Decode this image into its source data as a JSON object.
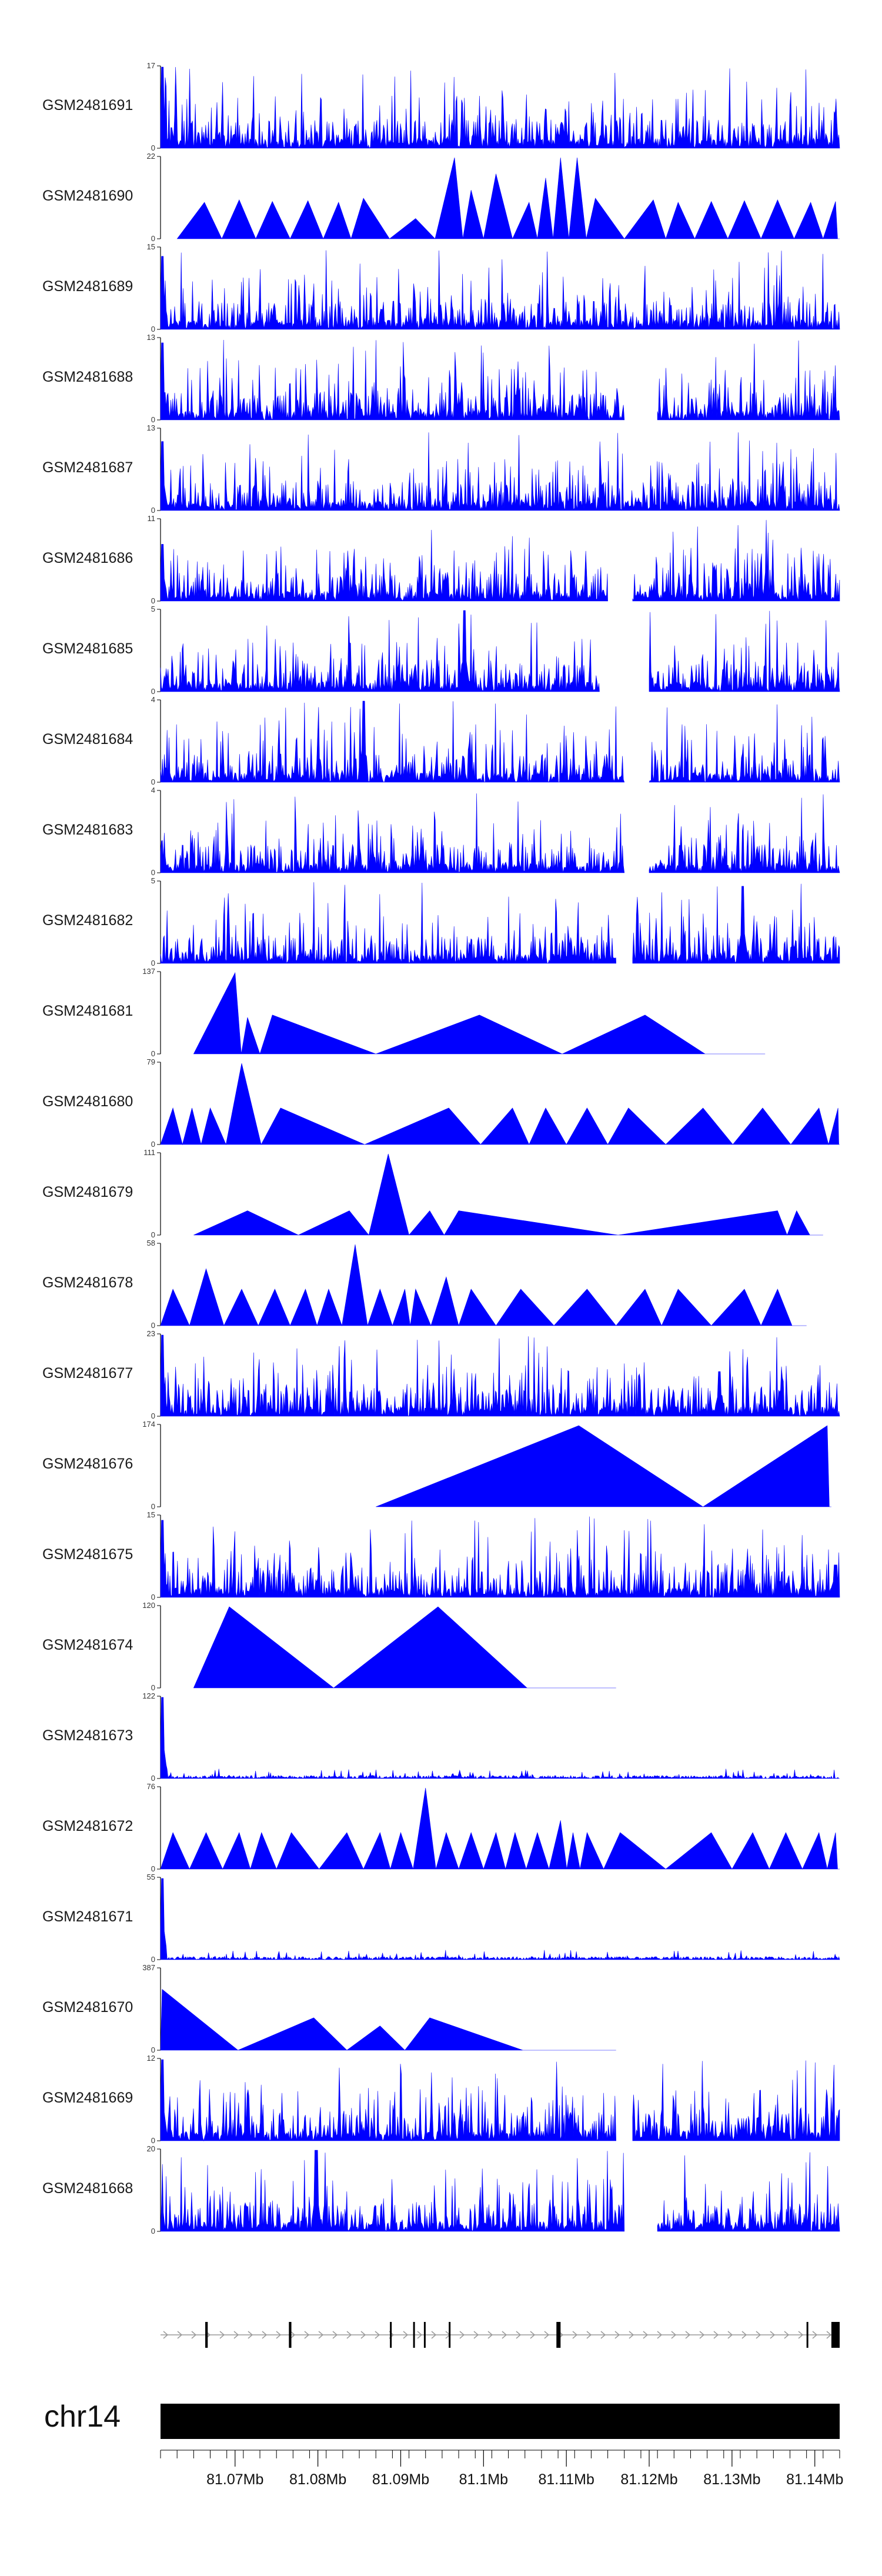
{
  "chart_data": {
    "type": "area",
    "title": "",
    "genome": {
      "chromosome": "chr14",
      "region_mb": [
        81.061,
        81.143
      ]
    },
    "colors": {
      "signal": "#0000ff",
      "axis": "#000000",
      "gene": "#000000",
      "intron": "#9a9a9a",
      "ideogram": "#000000"
    },
    "x_axis": {
      "ticks_mb": [
        81.07,
        81.08,
        81.09,
        81.1,
        81.11,
        81.12,
        81.13,
        81.14
      ],
      "tick_labels": [
        "81.07Mb",
        "81.08Mb",
        "81.09Mb",
        "81.1Mb",
        "81.11Mb",
        "81.12Mb",
        "81.13Mb",
        "81.14Mb"
      ],
      "minor_step_mb": 0.002
    },
    "tracks": [
      {
        "name": "GSM2481691",
        "ymax": 17,
        "ymin": 0,
        "style": "dense",
        "coverage": [
          [
            81.061,
            81.143
          ]
        ],
        "seed": 11,
        "spikes": [
          [
            81.0612,
            1.0
          ],
          [
            81.1095,
            0.28
          ]
        ]
      },
      {
        "name": "GSM2481690",
        "ymax": 22,
        "ymin": 0,
        "style": "peaks",
        "coverage": [
          [
            81.063,
            81.143
          ]
        ],
        "seed": 12,
        "peaks": [
          [
            81.0663,
            0.45
          ],
          [
            81.0705,
            0.48
          ],
          [
            81.0745,
            0.46
          ],
          [
            81.0788,
            0.47
          ],
          [
            81.0825,
            0.45
          ],
          [
            81.0855,
            0.5
          ],
          [
            81.0918,
            0.25
          ],
          [
            81.0965,
            1.0
          ],
          [
            81.0985,
            0.6
          ],
          [
            81.1015,
            0.8
          ],
          [
            81.1055,
            0.45
          ],
          [
            81.1075,
            0.75
          ],
          [
            81.1093,
            1.0
          ],
          [
            81.1113,
            1.0
          ],
          [
            81.1135,
            0.5
          ],
          [
            81.1205,
            0.48
          ],
          [
            81.1235,
            0.45
          ],
          [
            81.1275,
            0.46
          ],
          [
            81.1315,
            0.47
          ],
          [
            81.1355,
            0.48
          ],
          [
            81.1395,
            0.45
          ],
          [
            81.1425,
            0.46
          ]
        ]
      },
      {
        "name": "GSM2481689",
        "ymax": 15,
        "ymin": 0,
        "style": "dense",
        "coverage": [
          [
            81.061,
            81.143
          ]
        ],
        "seed": 13,
        "spikes": [
          [
            81.0612,
            0.9
          ]
        ]
      },
      {
        "name": "GSM2481688",
        "ymax": 13,
        "ymin": 0,
        "style": "dense",
        "coverage": [
          [
            81.061,
            81.117
          ],
          [
            81.121,
            81.143
          ]
        ],
        "seed": 14,
        "spikes": [
          [
            81.0612,
            0.95
          ]
        ]
      },
      {
        "name": "GSM2481687",
        "ymax": 13,
        "ymin": 0,
        "style": "dense",
        "coverage": [
          [
            81.061,
            81.143
          ]
        ],
        "seed": 15,
        "spikes": [
          [
            81.0612,
            0.85
          ]
        ]
      },
      {
        "name": "GSM2481686",
        "ymax": 11,
        "ymin": 0,
        "style": "dense",
        "coverage": [
          [
            81.061,
            81.115
          ],
          [
            81.118,
            81.143
          ]
        ],
        "seed": 16,
        "spikes": [
          [
            81.0612,
            0.7
          ]
        ]
      },
      {
        "name": "GSM2481685",
        "ymax": 5,
        "ymin": 0,
        "style": "dense",
        "coverage": [
          [
            81.061,
            81.114
          ],
          [
            81.12,
            81.143
          ]
        ],
        "seed": 17,
        "spikes": [
          [
            81.0977,
            1.0
          ]
        ]
      },
      {
        "name": "GSM2481684",
        "ymax": 4,
        "ymin": 0,
        "style": "dense",
        "coverage": [
          [
            81.061,
            81.117
          ],
          [
            81.12,
            81.143
          ]
        ],
        "seed": 18,
        "spikes": [
          [
            81.0855,
            1.0
          ]
        ]
      },
      {
        "name": "GSM2481683",
        "ymax": 4,
        "ymin": 0,
        "style": "dense",
        "coverage": [
          [
            81.061,
            81.117
          ],
          [
            81.12,
            81.143
          ]
        ],
        "seed": 19,
        "spikes": []
      },
      {
        "name": "GSM2481682",
        "ymax": 5,
        "ymin": 0,
        "style": "dense",
        "coverage": [
          [
            81.061,
            81.116
          ],
          [
            81.118,
            81.143
          ]
        ],
        "seed": 20,
        "spikes": [
          [
            81.1313,
            0.95
          ]
        ]
      },
      {
        "name": "GSM2481681",
        "ymax": 137,
        "ymin": 0,
        "style": "peaks",
        "coverage": [
          [
            81.065,
            81.134
          ]
        ],
        "seed": 21,
        "peaks": [
          [
            81.07,
            1.0
          ],
          [
            81.0715,
            0.45
          ],
          [
            81.0745,
            0.48
          ],
          [
            81.0995,
            0.48
          ],
          [
            81.1195,
            0.48
          ]
        ]
      },
      {
        "name": "GSM2481680",
        "ymax": 79,
        "ymin": 0,
        "style": "peaks",
        "coverage": [
          [
            81.061,
            81.143
          ]
        ],
        "seed": 22,
        "peaks": [
          [
            81.0625,
            0.45
          ],
          [
            81.0648,
            0.45
          ],
          [
            81.067,
            0.45
          ],
          [
            81.0708,
            1.0
          ],
          [
            81.0755,
            0.45
          ],
          [
            81.0958,
            0.45
          ],
          [
            81.1035,
            0.45
          ],
          [
            81.1075,
            0.45
          ],
          [
            81.1125,
            0.45
          ],
          [
            81.1175,
            0.45
          ],
          [
            81.1265,
            0.45
          ],
          [
            81.1337,
            0.45
          ],
          [
            81.1405,
            0.45
          ],
          [
            81.1428,
            0.45
          ]
        ]
      },
      {
        "name": "GSM2481679",
        "ymax": 111,
        "ymin": 0,
        "style": "peaks",
        "coverage": [
          [
            81.065,
            81.141
          ]
        ],
        "seed": 23,
        "peaks": [
          [
            81.0715,
            0.3
          ],
          [
            81.0838,
            0.3
          ],
          [
            81.0885,
            1.0
          ],
          [
            81.0935,
            0.3
          ],
          [
            81.097,
            0.3
          ],
          [
            81.1355,
            0.3
          ],
          [
            81.1378,
            0.3
          ]
        ]
      },
      {
        "name": "GSM2481678",
        "ymax": 58,
        "ymin": 0,
        "style": "peaks",
        "coverage": [
          [
            81.061,
            81.139
          ]
        ],
        "seed": 24,
        "peaks": [
          [
            81.0625,
            0.45
          ],
          [
            81.0665,
            0.7
          ],
          [
            81.0708,
            0.45
          ],
          [
            81.0748,
            0.45
          ],
          [
            81.0785,
            0.45
          ],
          [
            81.0813,
            0.45
          ],
          [
            81.0845,
            1.0
          ],
          [
            81.0875,
            0.45
          ],
          [
            81.0905,
            0.45
          ],
          [
            81.0918,
            0.45
          ],
          [
            81.0955,
            0.6
          ],
          [
            81.0985,
            0.45
          ],
          [
            81.1045,
            0.45
          ],
          [
            81.1125,
            0.45
          ],
          [
            81.1195,
            0.45
          ],
          [
            81.1235,
            0.45
          ],
          [
            81.1315,
            0.45
          ],
          [
            81.1355,
            0.45
          ]
        ]
      },
      {
        "name": "GSM2481677",
        "ymax": 23,
        "ymin": 0,
        "style": "dense",
        "coverage": [
          [
            81.061,
            81.143
          ]
        ],
        "seed": 25,
        "spikes": [
          [
            81.0612,
            1.0
          ],
          [
            81.1285,
            0.55
          ]
        ]
      },
      {
        "name": "GSM2481676",
        "ymax": 174,
        "ymin": 0,
        "style": "peaks",
        "coverage": [
          [
            81.087,
            81.142
          ]
        ],
        "seed": 26,
        "peaks": [
          [
            81.1115,
            1.0
          ],
          [
            81.1415,
            1.0
          ]
        ]
      },
      {
        "name": "GSM2481675",
        "ymax": 15,
        "ymin": 0,
        "style": "dense",
        "coverage": [
          [
            81.061,
            81.143
          ]
        ],
        "seed": 27,
        "spikes": [
          [
            81.0612,
            0.95
          ],
          [
            81.1425,
            0.4
          ]
        ]
      },
      {
        "name": "GSM2481674",
        "ymax": 120,
        "ymin": 0,
        "style": "peaks",
        "coverage": [
          [
            81.065,
            81.116
          ]
        ],
        "seed": 28,
        "peaks": [
          [
            81.0693,
            1.0
          ],
          [
            81.0945,
            1.0
          ]
        ]
      },
      {
        "name": "GSM2481673",
        "ymax": 122,
        "ymin": 0,
        "style": "dense",
        "coverage": [
          [
            81.061,
            81.143
          ]
        ],
        "seed": 29,
        "spikes": [
          [
            81.0612,
            1.0
          ]
        ],
        "low": true
      },
      {
        "name": "GSM2481672",
        "ymax": 76,
        "ymin": 0,
        "style": "peaks",
        "coverage": [
          [
            81.061,
            81.143
          ]
        ],
        "seed": 30,
        "peaks": [
          [
            81.0625,
            0.45
          ],
          [
            81.0665,
            0.45
          ],
          [
            81.0705,
            0.45
          ],
          [
            81.0732,
            0.45
          ],
          [
            81.0768,
            0.45
          ],
          [
            81.0835,
            0.45
          ],
          [
            81.0875,
            0.45
          ],
          [
            81.09,
            0.45
          ],
          [
            81.093,
            1.0
          ],
          [
            81.0955,
            0.45
          ],
          [
            81.0985,
            0.45
          ],
          [
            81.1015,
            0.45
          ],
          [
            81.1038,
            0.45
          ],
          [
            81.1065,
            0.45
          ],
          [
            81.1093,
            0.6
          ],
          [
            81.1108,
            0.45
          ],
          [
            81.1125,
            0.45
          ],
          [
            81.1165,
            0.45
          ],
          [
            81.1275,
            0.45
          ],
          [
            81.1325,
            0.45
          ],
          [
            81.1365,
            0.45
          ],
          [
            81.1405,
            0.45
          ],
          [
            81.1425,
            0.45
          ]
        ]
      },
      {
        "name": "GSM2481671",
        "ymax": 55,
        "ymin": 0,
        "style": "dense",
        "coverage": [
          [
            81.061,
            81.143
          ]
        ],
        "seed": 31,
        "spikes": [
          [
            81.0612,
            1.0
          ]
        ],
        "low": true
      },
      {
        "name": "GSM2481670",
        "ymax": 387,
        "ymin": 0,
        "style": "peaks",
        "coverage": [
          [
            81.061,
            81.116
          ]
        ],
        "seed": 32,
        "peaks": [
          [
            81.0612,
            0.75
          ],
          [
            81.0795,
            0.4
          ],
          [
            81.0875,
            0.3
          ],
          [
            81.0935,
            0.4
          ]
        ]
      },
      {
        "name": "GSM2481669",
        "ymax": 12,
        "ymin": 0,
        "style": "dense",
        "coverage": [
          [
            81.061,
            81.116
          ],
          [
            81.118,
            81.143
          ]
        ],
        "seed": 33,
        "spikes": [
          [
            81.0612,
            1.0
          ]
        ]
      },
      {
        "name": "GSM2481668",
        "ymax": 20,
        "ymin": 0,
        "style": "dense",
        "coverage": [
          [
            81.061,
            81.117
          ],
          [
            81.121,
            81.143
          ]
        ],
        "seed": 34,
        "spikes": [
          [
            81.0798,
            1.0
          ]
        ]
      }
    ],
    "gene_model": {
      "strand": "+",
      "span_mb": [
        81.061,
        81.143
      ],
      "exons_mb": [
        [
          81.0664,
          81.0667
        ],
        [
          81.0765,
          81.0768
        ],
        [
          81.0887,
          81.0889
        ],
        [
          81.0915,
          81.0917
        ],
        [
          81.0928,
          81.093
        ],
        [
          81.0958,
          81.096
        ],
        [
          81.1088,
          81.1093
        ],
        [
          81.139,
          81.1392
        ],
        [
          81.142,
          81.143
        ]
      ]
    }
  }
}
